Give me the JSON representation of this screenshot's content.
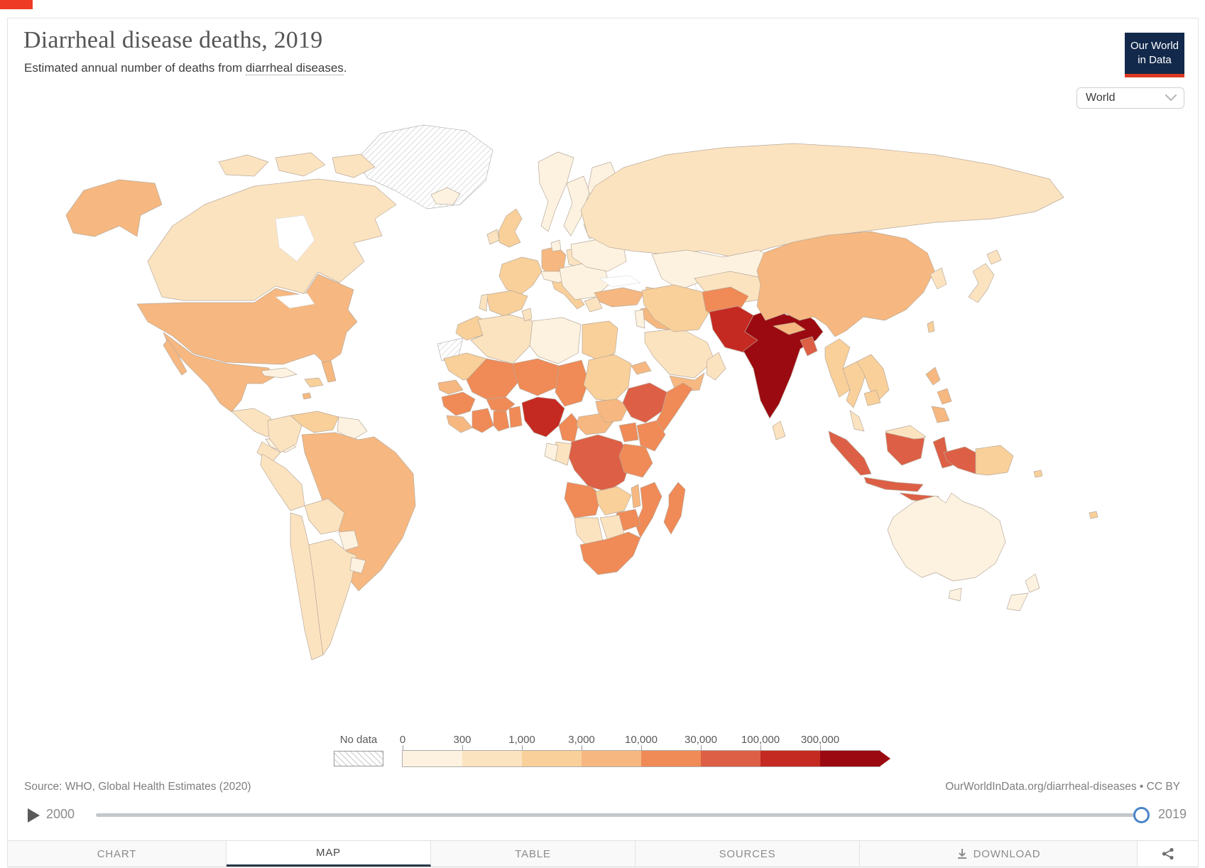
{
  "page": {
    "corner_marker_color": "#ee3b24"
  },
  "header": {
    "title": "Diarrheal disease deaths, 2019",
    "subtitle_prefix": "Estimated annual number of deaths from ",
    "subtitle_link_text": "diarrheal diseases",
    "subtitle_suffix": ".",
    "logo": {
      "line1": "Our World",
      "line2": "in Data",
      "bg_color": "#12294b",
      "accent_color": "#dc3a22"
    },
    "region_dropdown": {
      "value": "World"
    }
  },
  "legend": {
    "no_data_label": "No data",
    "stops": [
      "0",
      "300",
      "1,000",
      "3,000",
      "10,000",
      "30,000",
      "100,000",
      "300,000"
    ],
    "bin_labels": [
      "0–300",
      "300–1,000",
      "1,000–3,000",
      "3,000–10,000",
      "10,000–30,000",
      "30,000–100,000",
      "100,000–300,000",
      "300,000+"
    ],
    "colors": [
      "#fdf2e0",
      "#fce3c0",
      "#f9d09a",
      "#f6b880",
      "#f08a56",
      "#dd5f45",
      "#c52a22",
      "#9b0a10"
    ]
  },
  "footer": {
    "source": "Source: WHO, Global Health Estimates (2020)",
    "attribution": "OurWorldInData.org/diarrheal-diseases • CC BY"
  },
  "timeline": {
    "start_year": "2000",
    "end_year": "2019"
  },
  "tabs": [
    {
      "label": "CHART",
      "active": false
    },
    {
      "label": "MAP",
      "active": true
    },
    {
      "label": "TABLE",
      "active": false
    },
    {
      "label": "SOURCES",
      "active": false
    },
    {
      "label": "DOWNLOAD",
      "active": false
    }
  ],
  "map": {
    "regions": {
      "greenland": "nodata",
      "western-sahara": "nodata",
      "canada": 1,
      "arctic-islands": 1,
      "alaska": 3,
      "usa": 3,
      "florida": 3,
      "mexico": 3,
      "baja": 3,
      "guatemala": 1,
      "panama": 0,
      "cuba": 0,
      "hispaniola": 2,
      "caribbean-dot": 3,
      "colombia": 1,
      "venezuela": 2,
      "guyanas": 0,
      "ecuador": 1,
      "peru": 1,
      "brazil": 3,
      "bolivia": 1,
      "paraguay": 0,
      "chile": 1,
      "argentina": 1,
      "uruguay": 0,
      "iceland": 0,
      "uk": 2,
      "ireland": 1,
      "norway": 0,
      "sweden": 0,
      "finland": 0,
      "denmark": 0,
      "france": 2,
      "spain": 2,
      "portugal": 1,
      "germany": 3,
      "italy": 2,
      "alpine": 0,
      "poland": 1,
      "east-europe": 0,
      "baltics": 0,
      "ukraine": 0,
      "greece": 1,
      "russia": 1,
      "kazakhstan": 0,
      "central-asia": 1,
      "mongolia": 0,
      "caucasus": 2,
      "turkey": 3,
      "syria-iraq": 3,
      "israel-jordan": 0,
      "saudi": 1,
      "yemen": 3,
      "oman": 1,
      "iran": 2,
      "afghanistan": 4,
      "pakistan": 6,
      "india": 7,
      "nepal": 3,
      "bangladesh": 5,
      "sri-lanka": 1,
      "myanmar": 2,
      "china": 3,
      "korea": 1,
      "taiwan": 2,
      "japan": 1,
      "thailand": 2,
      "laos-vietnam": 2,
      "cambodia": 2,
      "malaysia": 1,
      "indonesia": 5,
      "philippines": 3,
      "png": 2,
      "morocco": 2,
      "algeria": 1,
      "tunisia": 1,
      "libya": 0,
      "egypt": 2,
      "mauritania": 2,
      "mali": 4,
      "niger": 4,
      "chad": 4,
      "sudan": 2,
      "eritrea": 3,
      "senegal": 3,
      "guinea": 4,
      "sierra-liberia": 3,
      "ivory-coast": 4,
      "ghana": 4,
      "togo-benin": 4,
      "burkina": 4,
      "nigeria": 6,
      "cameroon": 4,
      "car": 3,
      "south-sudan": 3,
      "ethiopia": 5,
      "somalia": 4,
      "kenya": 4,
      "uganda": 4,
      "drc": 5,
      "congo": 1,
      "gabon": 0,
      "tanzania": 4,
      "angola": 4,
      "zambia": 2,
      "malawi": 3,
      "mozambique": 4,
      "zimbabwe": 4,
      "botswana": 1,
      "namibia": 1,
      "south-africa": 4,
      "madagascar": 4,
      "australia": 0,
      "tasmania": 0,
      "new-zealand": 0,
      "pacific-dot": 2
    }
  },
  "chart_data": {
    "type": "heatmap",
    "subtype": "choropleth-world-map",
    "title": "Diarrheal disease deaths, 2019",
    "subtitle": "Estimated annual number of deaths from diarrheal diseases.",
    "unit": "deaths",
    "year": 2019,
    "legend_bins": [
      "0–300",
      "300–1,000",
      "1,000–3,000",
      "3,000–10,000",
      "10,000–30,000",
      "30,000–100,000",
      "100,000–300,000",
      "300,000+"
    ],
    "no_data": [
      "Greenland",
      "Western Sahara"
    ],
    "regions": {
      "India": "300,000+",
      "Pakistan": "100,000–300,000",
      "Nigeria": "100,000–300,000",
      "Democratic Republic of Congo": "30,000–100,000",
      "Ethiopia": "30,000–100,000",
      "Indonesia": "30,000–100,000",
      "Bangladesh": "30,000–100,000",
      "Mali": "10,000–30,000",
      "Niger": "10,000–30,000",
      "Chad": "10,000–30,000",
      "Afghanistan": "10,000–30,000",
      "Kenya": "10,000–30,000",
      "Somalia": "10,000–30,000",
      "Tanzania": "10,000–30,000",
      "Angola": "10,000–30,000",
      "Mozambique": "10,000–30,000",
      "South Africa": "10,000–30,000",
      "Madagascar": "10,000–30,000",
      "Cameroon": "10,000–30,000",
      "Ghana": "10,000–30,000",
      "United States": "3,000–10,000",
      "Mexico": "3,000–10,000",
      "Brazil": "3,000–10,000",
      "China": "3,000–10,000",
      "Germany": "3,000–10,000",
      "Turkey": "3,000–10,000",
      "Philippines": "3,000–10,000",
      "Nepal": "3,000–10,000",
      "Yemen": "3,000–10,000",
      "Iraq": "3,000–10,000",
      "Myanmar": "1,000–3,000",
      "Thailand": "1,000–3,000",
      "Vietnam": "1,000–3,000",
      "Iran": "1,000–3,000",
      "Egypt": "1,000–3,000",
      "Morocco": "1,000–3,000",
      "Sudan": "1,000–3,000",
      "United Kingdom": "1,000–3,000",
      "France": "1,000–3,000",
      "Spain": "1,000–3,000",
      "Italy": "1,000–3,000",
      "Venezuela": "1,000–3,000",
      "Zambia": "1,000–3,000",
      "Canada": "300–1,000",
      "Russia": "300–1,000",
      "Japan": "300–1,000",
      "Saudi Arabia": "300–1,000",
      "Colombia": "300–1,000",
      "Peru": "300–1,000",
      "Argentina": "300–1,000",
      "Algeria": "300–1,000",
      "Poland": "300–1,000",
      "Australia": "0–300",
      "New Zealand": "0–300",
      "Kazakhstan": "0–300",
      "Mongolia": "0–300",
      "Libya": "0–300",
      "Scandinavia": "0–300",
      "Eastern Europe": "0–300",
      "Cuba": "0–300",
      "Paraguay": "0–300",
      "Uruguay": "0–300"
    }
  }
}
